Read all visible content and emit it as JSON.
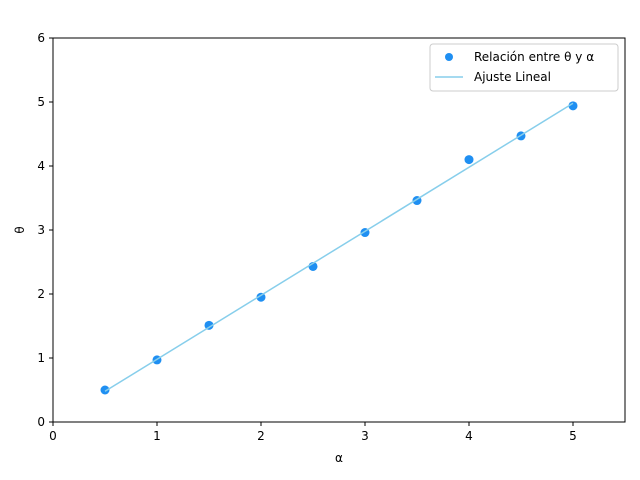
{
  "chart_data": {
    "type": "scatter",
    "title": "",
    "xlabel": "α",
    "ylabel": "θ",
    "xlim": [
      0,
      5.5
    ],
    "ylim": [
      0,
      6
    ],
    "x_ticks": [
      0,
      1,
      2,
      3,
      4,
      5
    ],
    "y_ticks": [
      0,
      1,
      2,
      3,
      4,
      5,
      6
    ],
    "grid": false,
    "legend_position": "top-right",
    "series": [
      {
        "name": "Relación entre θ y α",
        "kind": "scatter",
        "color": "#1f8ff2",
        "x": [
          0.5,
          1.0,
          1.5,
          2.0,
          2.5,
          3.0,
          3.5,
          4.0,
          4.5,
          5.0
        ],
        "y": [
          0.5,
          0.97,
          1.51,
          1.95,
          2.43,
          2.96,
          3.46,
          4.1,
          4.47,
          4.94
        ]
      },
      {
        "name": "Ajuste Lineal",
        "kind": "line",
        "color": "#87ceeb",
        "x": [
          0.5,
          5.0
        ],
        "y": [
          0.48,
          4.98
        ]
      }
    ]
  }
}
